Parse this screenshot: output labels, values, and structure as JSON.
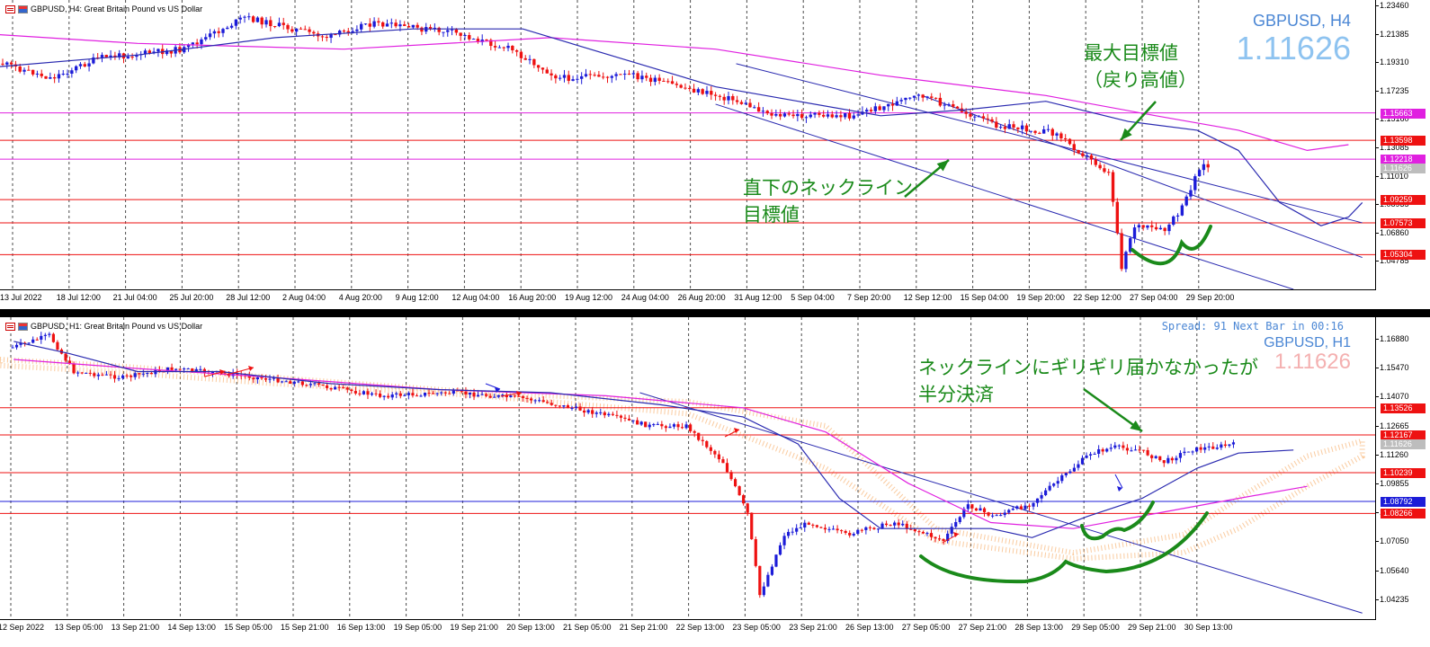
{
  "top_chart": {
    "header": "GBPUSD, H4:  Great Britain Pound vs US Dollar",
    "symbol": "GBPUSD, H4",
    "price": "1.11626",
    "annotations": {
      "target_max": "最大目標値\n（戻り高値）",
      "neckline_target": "直下のネックライン\n目標値"
    },
    "price_ticks": [
      "1.23460",
      "1.21385",
      "1.19310",
      "1.17235",
      "1.15160",
      "1.13085",
      "1.11010",
      "1.08935",
      "1.06860",
      "1.04785"
    ],
    "level_tags": [
      {
        "value": "1.15663",
        "color": "#e020e0"
      },
      {
        "value": "1.13598",
        "color": "#ee1111"
      },
      {
        "value": "1.12218",
        "color": "#e020e0"
      },
      {
        "value": "1.11626",
        "color": "#bdbdbd"
      },
      {
        "value": "1.09259",
        "color": "#ee1111"
      },
      {
        "value": "1.07573",
        "color": "#ee1111"
      },
      {
        "value": "1.05304",
        "color": "#ee1111"
      }
    ],
    "time_labels": [
      "13 Jul 2022",
      "18 Jul 12:00",
      "21 Jul 04:00",
      "25 Jul 20:00",
      "28 Jul 12:00",
      "2 Aug 04:00",
      "4 Aug 20:00",
      "9 Aug 12:00",
      "12 Aug 04:00",
      "16 Aug 20:00",
      "19 Aug 12:00",
      "24 Aug 04:00",
      "26 Aug 20:00",
      "31 Aug 12:00",
      "5 Sep 04:00",
      "7 Sep 20:00",
      "12 Sep 12:00",
      "15 Sep 04:00",
      "19 Sep 20:00",
      "22 Sep 12:00",
      "27 Sep 04:00",
      "29 Sep 20:00"
    ]
  },
  "bottom_chart": {
    "header": "GBPUSD, H1:  Great Britain Pound vs US Dollar",
    "symbol": "GBPUSD, H1",
    "price": "1.11626",
    "spread_text": "Spread: 91  Next Bar in 00:16",
    "annotations": {
      "neckline_note": "ネックラインにギリギリ届かなかったが\n半分決済"
    },
    "price_ticks": [
      "1.16880",
      "1.15470",
      "1.14070",
      "1.12665",
      "1.11260",
      "1.09855",
      "1.08455",
      "1.07050",
      "1.05640",
      "1.04235"
    ],
    "level_tags": [
      {
        "value": "1.13526",
        "color": "#ee1111"
      },
      {
        "value": "1.12167",
        "color": "#ee1111"
      },
      {
        "value": "1.11626",
        "color": "#bdbdbd"
      },
      {
        "value": "1.10239",
        "color": "#ee1111"
      },
      {
        "value": "1.08792",
        "color": "#1c1cd8"
      },
      {
        "value": "1.08266",
        "color": "#ee1111"
      }
    ],
    "time_labels": [
      "12 Sep 2022",
      "13 Sep 05:00",
      "13 Sep 21:00",
      "14 Sep 13:00",
      "15 Sep 05:00",
      "15 Sep 21:00",
      "16 Sep 13:00",
      "19 Sep 05:00",
      "19 Sep 21:00",
      "20 Sep 13:00",
      "21 Sep 05:00",
      "21 Sep 21:00",
      "22 Sep 13:00",
      "23 Sep 05:00",
      "23 Sep 21:00",
      "26 Sep 13:00",
      "27 Sep 05:00",
      "27 Sep 21:00",
      "28 Sep 13:00",
      "29 Sep 05:00",
      "29 Sep 21:00",
      "30 Sep 13:00"
    ]
  },
  "colors": {
    "bull": "#1c1cd8",
    "bear": "#ee1111",
    "ma_fast": "#2a2ab0",
    "ma_slow": "#e020e0",
    "annotation": "#1a8a1a",
    "cloud": "#f5a050"
  }
}
